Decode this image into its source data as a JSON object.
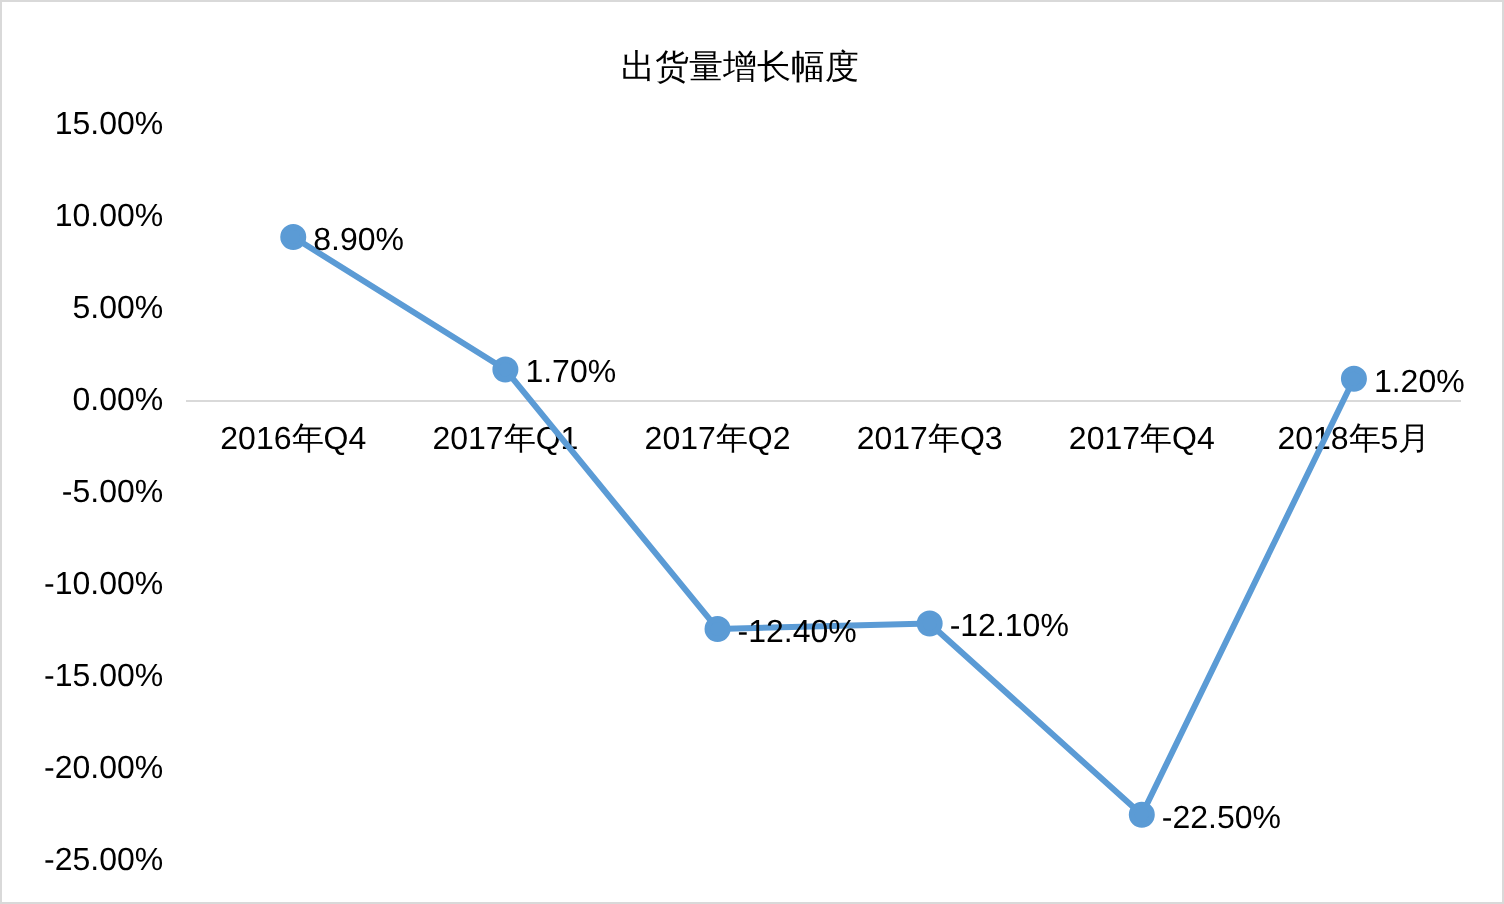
{
  "chart_data": {
    "type": "line",
    "title": "出货量增长幅度",
    "categories": [
      "2016年Q4",
      "2017年Q1",
      "2017年Q2",
      "2017年Q3",
      "2017年Q4",
      "2018年5月"
    ],
    "series": [
      {
        "color": "#5b9bd5",
        "values": [
          8.9,
          1.7,
          -12.4,
          -12.1,
          -22.5,
          1.2
        ],
        "value_labels": [
          "8.90%",
          "1.70%",
          "-12.40%",
          "-12.10%",
          "-22.50%",
          "1.20%"
        ]
      }
    ],
    "ylim": [
      -25,
      15
    ],
    "yticks": [
      {
        "value": -25,
        "label": "-25.00%"
      },
      {
        "value": -20,
        "label": "-20.00%"
      },
      {
        "value": -15,
        "label": "-15.00%"
      },
      {
        "value": -10,
        "label": "-10.00%"
      },
      {
        "value": -5,
        "label": "-5.00%"
      },
      {
        "value": 0,
        "label": "0.00%"
      },
      {
        "value": 5,
        "label": "5.00%"
      },
      {
        "value": 10,
        "label": "10.00%"
      },
      {
        "value": 15,
        "label": "15.00%"
      }
    ],
    "grid": false,
    "legend": false,
    "marker": "circle",
    "line_style": "solid"
  }
}
